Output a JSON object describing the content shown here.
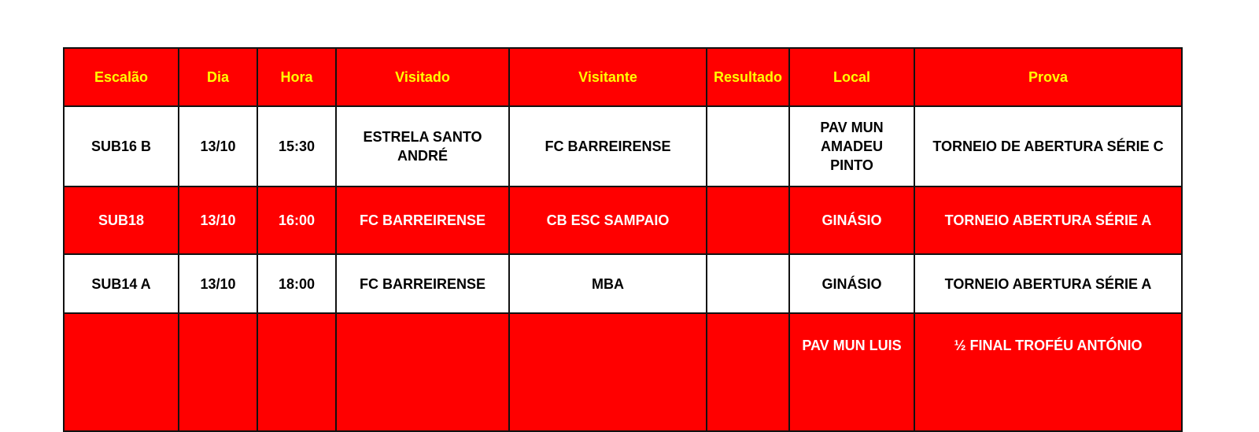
{
  "columns": [
    "Escalão",
    "Dia",
    "Hora",
    "Visitado",
    "Visitante",
    "Resultado",
    "Local",
    "Prova"
  ],
  "rows": [
    {
      "escalao": "SUB16 B",
      "dia": "13/10",
      "hora": "15:30",
      "visitado": "ESTRELA SANTO ANDRÉ",
      "visitante": "FC BARREIRENSE",
      "resultado": "",
      "local": "PAV MUN AMADEU PINTO",
      "prova": "TORNEIO DE ABERTURA SÉRIE C"
    },
    {
      "escalao": "SUB18",
      "dia": "13/10",
      "hora": "16:00",
      "visitado": "FC BARREIRENSE",
      "visitante": "CB ESC SAMPAIO",
      "resultado": "",
      "local": "GINÁSIO",
      "prova": "TORNEIO ABERTURA SÉRIE A"
    },
    {
      "escalao": "SUB14 A",
      "dia": "13/10",
      "hora": "18:00",
      "visitado": "FC BARREIRENSE",
      "visitante": "MBA",
      "resultado": "",
      "local": "GINÁSIO",
      "prova": "TORNEIO ABERTURA SÉRIE A"
    },
    {
      "escalao": "",
      "dia": "",
      "hora": "",
      "visitado": "",
      "visitante": "",
      "resultado": "",
      "local": "PAV MUN LUIS",
      "prova": "½ FINAL TROFÉU ANTÓNIO"
    }
  ],
  "colors": {
    "header_bg": "#ff0000",
    "header_text": "#ffff00",
    "alt_row_bg": "#ff0000",
    "alt_row_text": "#ffffff"
  }
}
